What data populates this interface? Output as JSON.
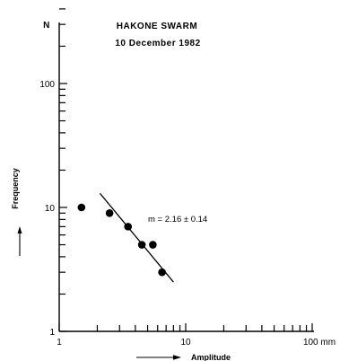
{
  "chart_data": {
    "type": "scatter",
    "title": "HAKONE  SWARM",
    "subtitle": "10 December  1982",
    "xlabel": "Amplitude",
    "ylabel": "Frequency",
    "y_axis_top_label": "N",
    "x_scale": "log",
    "y_scale": "log",
    "xlim": [
      1,
      100
    ],
    "ylim": [
      1,
      1000
    ],
    "x_tick_labels": [
      {
        "value": 1,
        "label": "1"
      },
      {
        "value": 10,
        "label": "10"
      },
      {
        "value": 100,
        "label": "100 mm"
      }
    ],
    "y_tick_labels": [
      {
        "value": 1,
        "label": "1"
      },
      {
        "value": 10,
        "label": "10"
      },
      {
        "value": 100,
        "label": "100"
      }
    ],
    "grid": false,
    "points": [
      {
        "x": 1.5,
        "y": 10
      },
      {
        "x": 2.5,
        "y": 9
      },
      {
        "x": 3.5,
        "y": 7
      },
      {
        "x": 4.5,
        "y": 5
      },
      {
        "x": 5.5,
        "y": 5
      },
      {
        "x": 6.5,
        "y": 3
      }
    ],
    "fit_line": {
      "x": [
        2.1,
        8.0
      ],
      "y": [
        13.0,
        2.5
      ]
    },
    "annotation": "m = 2.16 ± 0.14"
  }
}
